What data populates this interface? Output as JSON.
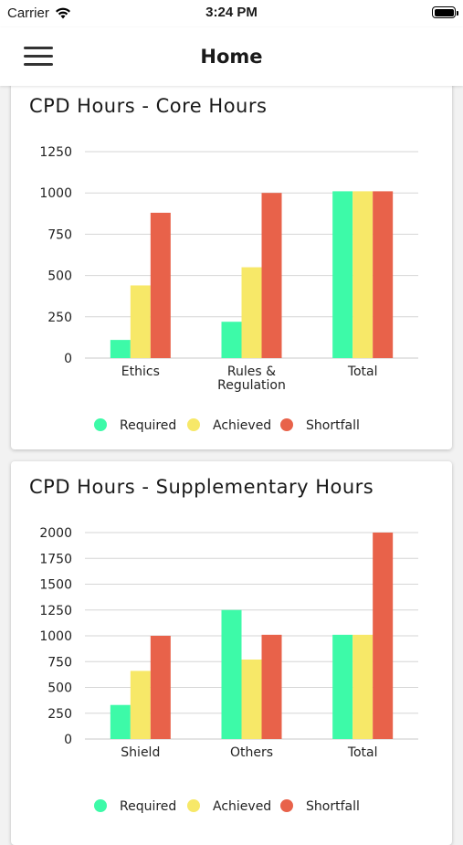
{
  "status_bar": {
    "carrier": "Carrier",
    "time": "3:24 PM"
  },
  "nav": {
    "title": "Home"
  },
  "colors": {
    "required": "#3dfaa8",
    "achieved": "#f7e868",
    "shortfall": "#e8624a",
    "grid": "#d6d6d6"
  },
  "charts": [
    {
      "title": "CPD Hours - Core Hours",
      "chart_data": {
        "type": "bar",
        "categories": [
          [
            "Ethics"
          ],
          [
            "Rules &",
            "Regulation"
          ],
          [
            "Total"
          ]
        ],
        "yticks": [
          "0",
          "250",
          "500",
          "750",
          "1000",
          "1250"
        ],
        "ylim": [
          0,
          1250
        ],
        "series": [
          {
            "name": "Required",
            "values": [
              110,
              220,
              1010
            ]
          },
          {
            "name": "Achieved",
            "values": [
              440,
              550,
              1010
            ]
          },
          {
            "name": "Shortfall",
            "values": [
              880,
              1000,
              1010
            ]
          }
        ],
        "legend": [
          "Required",
          "Achieved",
          "Shortfall"
        ],
        "legend_position": "bottom-center",
        "grid": true
      }
    },
    {
      "title": "CPD Hours - Supplementary Hours",
      "chart_data": {
        "type": "bar",
        "categories": [
          [
            "Shield"
          ],
          [
            "Others"
          ],
          [
            "Total"
          ]
        ],
        "yticks": [
          "0",
          "250",
          "500",
          "750",
          "1000",
          "1250",
          "1500",
          "1750",
          "2000"
        ],
        "ylim": [
          0,
          2000
        ],
        "series": [
          {
            "name": "Required",
            "values": [
              330,
              1250,
              1010
            ]
          },
          {
            "name": "Achieved",
            "values": [
              660,
              770,
              1010
            ]
          },
          {
            "name": "Shortfall",
            "values": [
              1000,
              1010,
              2000
            ]
          }
        ],
        "legend": [
          "Required",
          "Achieved",
          "Shortfall"
        ],
        "legend_position": "bottom-center",
        "grid": true
      }
    }
  ]
}
